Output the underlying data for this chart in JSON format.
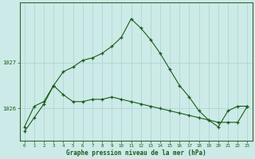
{
  "xlabel": "Graphe pression niveau de la mer (hPa)",
  "background_color": "#cceae7",
  "line_color": "#1a5c1a",
  "grid_color": "#aad4d0",
  "hours": [
    0,
    1,
    2,
    3,
    4,
    5,
    6,
    7,
    8,
    9,
    10,
    11,
    12,
    13,
    14,
    15,
    16,
    17,
    18,
    19,
    20,
    21,
    22,
    23
  ],
  "series1": [
    1025.5,
    1025.8,
    1026.1,
    1026.5,
    1026.8,
    1026.9,
    1027.05,
    1027.1,
    1027.2,
    1027.35,
    1027.55,
    1027.95,
    1027.75,
    1027.5,
    1027.2,
    1026.85,
    1026.5,
    1026.25,
    1025.95,
    1025.75,
    1025.6,
    1025.95,
    1026.05,
    1026.05
  ],
  "series2": [
    1025.6,
    1026.05,
    1026.15,
    1026.5,
    1026.3,
    1026.15,
    1026.15,
    1026.2,
    1026.2,
    1026.25,
    1026.2,
    1026.15,
    1026.1,
    1026.05,
    1026.0,
    1025.95,
    1025.9,
    1025.85,
    1025.8,
    1025.75,
    1025.7,
    1025.7,
    1025.7,
    1026.05
  ],
  "ylim_min": 1025.3,
  "ylim_max": 1028.3,
  "yticks": [
    1026,
    1027
  ],
  "ytick_labels": [
    "1026",
    "1027"
  ],
  "xlim_min": -0.5,
  "xlim_max": 23.5
}
